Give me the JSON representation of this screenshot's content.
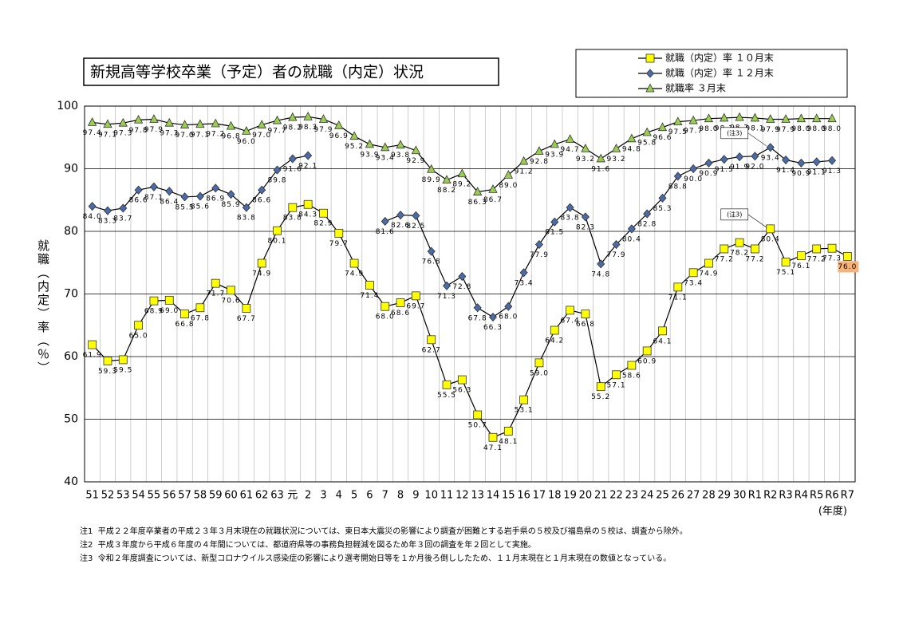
{
  "chart_data": {
    "type": "line",
    "title": "新規高等学校卒業（予定）者の就職（内定）状況",
    "y_label": "就職（内定）率（％）",
    "x_label": "(年度)",
    "categories": [
      "51",
      "52",
      "53",
      "54",
      "55",
      "56",
      "57",
      "58",
      "59",
      "60",
      "61",
      "62",
      "63",
      "元",
      "2",
      "3",
      "4",
      "5",
      "6",
      "7",
      "8",
      "9",
      "10",
      "11",
      "12",
      "13",
      "14",
      "15",
      "16",
      "17",
      "18",
      "19",
      "20",
      "21",
      "22",
      "23",
      "24",
      "25",
      "26",
      "27",
      "28",
      "29",
      "30",
      "R1",
      "R2",
      "R3",
      "R4",
      "R5",
      "R6",
      "R7"
    ],
    "ylim": [
      40,
      100
    ],
    "yticks": [
      40,
      50,
      60,
      70,
      80,
      90,
      100
    ],
    "grid": true,
    "series": [
      {
        "name": "就職（内定）率 １０月末",
        "color": "#ffff00",
        "marker": "square",
        "values": [
          61.9,
          59.3,
          59.5,
          65.0,
          68.9,
          69.0,
          66.8,
          67.8,
          71.7,
          70.6,
          67.7,
          74.9,
          80.1,
          83.8,
          84.3,
          82.9,
          79.7,
          74.9,
          71.4,
          68.0,
          68.6,
          69.7,
          62.7,
          55.5,
          56.3,
          50.7,
          47.1,
          48.1,
          53.1,
          59.0,
          64.2,
          67.4,
          66.8,
          55.2,
          57.1,
          58.6,
          60.9,
          64.1,
          71.1,
          73.4,
          74.9,
          77.2,
          78.2,
          77.2,
          80.4,
          75.1,
          76.1,
          77.2,
          77.3,
          76.0
        ],
        "value_labels": [
          "61.9",
          "59.3",
          "59.5",
          "65.0",
          "68.9",
          "69.0",
          "66.8",
          "67.8",
          "71.7",
          "70.6",
          "67.7",
          "74.9",
          "80.1",
          "83.8",
          "84.3",
          "82.9",
          "79.7",
          "74.9",
          "71.4",
          "68.0",
          "68.6",
          "69.7",
          "62.7",
          "55.5",
          "56.3",
          "50.7",
          "47.1",
          "48.1",
          "53.1",
          "59.0",
          "64.2",
          "67.4",
          "66.8",
          "55.2",
          "57.1",
          "58.6",
          "60.9",
          "64.1",
          "71.1",
          "73.4",
          "74.9",
          "77.2",
          "78.2",
          "77.2",
          "80.4",
          "75.1",
          "76.1",
          "77.2",
          "77.3",
          "76.0"
        ]
      },
      {
        "name": "就職（内定）率 １２月末",
        "color": "#4a6aa8",
        "marker": "diamond",
        "values": [
          84.0,
          83.3,
          83.7,
          86.6,
          87.1,
          86.4,
          85.5,
          85.6,
          86.9,
          85.9,
          83.8,
          86.6,
          89.8,
          91.6,
          92.1,
          null,
          null,
          null,
          null,
          81.6,
          82.6,
          82.5,
          76.8,
          71.3,
          72.8,
          67.8,
          66.3,
          68.0,
          73.4,
          77.9,
          81.5,
          83.8,
          82.3,
          74.8,
          77.9,
          80.4,
          82.8,
          85.3,
          88.8,
          90.0,
          90.9,
          91.5,
          91.9,
          92.0,
          93.4,
          91.4,
          90.9,
          91.1,
          91.3,
          null
        ],
        "value_labels": [
          "84.0",
          "83.3",
          "83.7",
          "86.6",
          "87.1",
          "86.4",
          "85.5",
          "85.6",
          "86.9",
          "85.9",
          "83.8",
          "86.6",
          "89.8",
          "91.6",
          "92.1",
          null,
          null,
          null,
          null,
          "81.6",
          "82.6",
          "82.5",
          "76.8",
          "71.3",
          "72.8",
          "67.8",
          "66.3",
          "68.0",
          "73.4",
          "77.9",
          "81.5",
          "83.8",
          "82.3",
          "74.8",
          "77.9",
          "80.4",
          "82.8",
          "85.3",
          "88.8",
          "90.0",
          "90.9",
          "91.5",
          "91.9",
          "92.0",
          "93.4",
          "91.4",
          "90.9",
          "91.1",
          "91.3",
          null
        ]
      },
      {
        "name": "就職率 ３月末",
        "color": "#9acd50",
        "marker": "triangle",
        "values": [
          97.4,
          97.1,
          97.3,
          97.8,
          97.9,
          97.3,
          97.0,
          97.1,
          97.2,
          96.8,
          96.0,
          97.0,
          97.7,
          98.2,
          98.3,
          97.9,
          96.9,
          95.2,
          93.9,
          93.4,
          93.8,
          92.9,
          89.9,
          88.2,
          89.2,
          86.3,
          86.7,
          89.0,
          91.2,
          92.8,
          93.9,
          94.7,
          93.2,
          91.6,
          93.2,
          94.8,
          95.8,
          96.6,
          97.5,
          97.7,
          98.0,
          98.1,
          98.2,
          98.1,
          97.9,
          97.9,
          98.0,
          98.0,
          98.0,
          null
        ],
        "value_labels": [
          "97.4",
          "97.1",
          "97.3",
          "97.8",
          "97.9",
          "97.3",
          "97.0",
          "97.1",
          "97.2",
          "96.8",
          "96.0",
          "97.0",
          "97.7",
          "98.2",
          "98.3",
          "97.9",
          "96.9",
          "95.2",
          "93.9",
          "93.4",
          "93.8",
          "92.9",
          "89.9",
          "88.2",
          "89.2",
          "86.3",
          "86.7",
          "89.0",
          "91.2",
          "92.8",
          "93.9",
          "94.7",
          "93.2",
          "91.6",
          "93.2",
          "94.8",
          "95.8",
          "96.6",
          "97.5",
          "97.7",
          "98.0",
          "98.1",
          "98.2",
          "98.1",
          "97.9",
          "97.9",
          "98.0",
          "98.0",
          "98.0",
          null
        ]
      }
    ],
    "annotations": [
      "(注3)",
      "(注3)"
    ],
    "notes": [
      {
        "label": "注1",
        "text": "平成２２年度卒業者の平成２３年３月末現在の就職状況については、東日本大震災の影響により調査が困難とする岩手県の５校及び福島県の５校は、調査から除外。"
      },
      {
        "label": "注2",
        "text": "平成３年度から平成６年度の４年間については、都道府県等の事務負担軽減を図るため年３回の調査を年２回として実施。"
      },
      {
        "label": "注3",
        "text": "令和２年度調査については、新型コロナウイルス感染症の影響により選考開始日等を１か月後ろ倒ししたため、１１月末現在と１月末現在の数値となっている。"
      }
    ]
  }
}
